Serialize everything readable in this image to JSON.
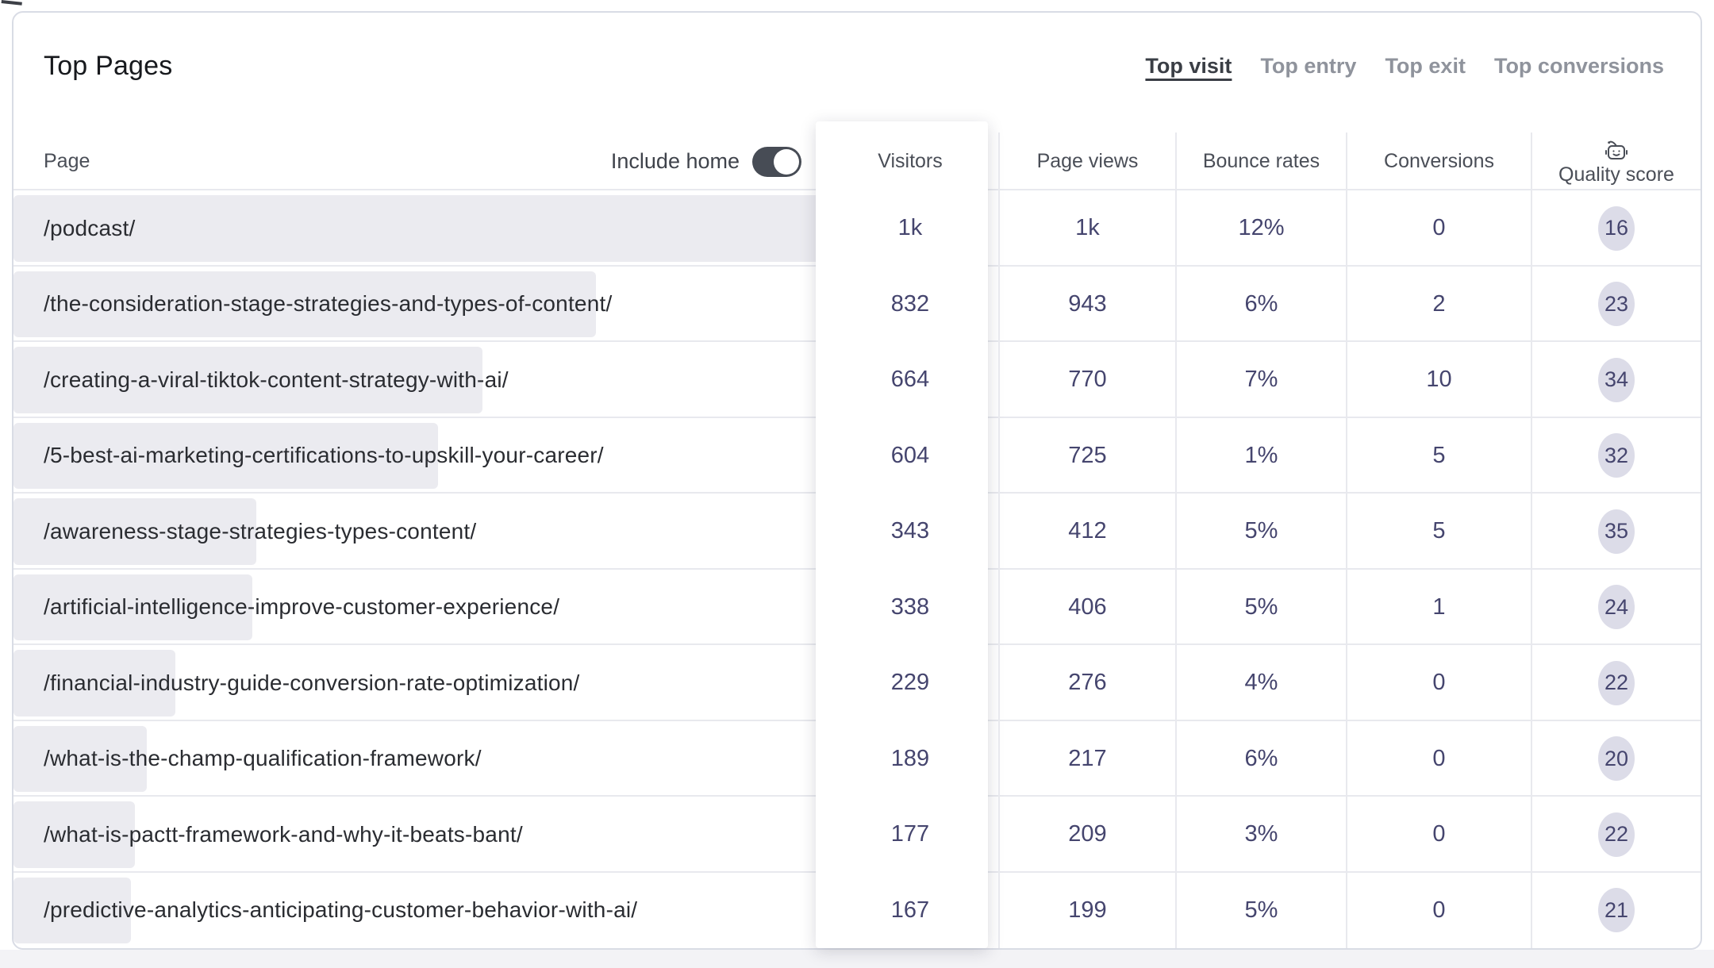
{
  "page": {
    "title": "Top Pages",
    "tabs": [
      {
        "label": "Top visit",
        "active": true
      },
      {
        "label": "Top entry",
        "active": false
      },
      {
        "label": "Top exit",
        "active": false
      },
      {
        "label": "Top conversions",
        "active": false
      }
    ],
    "include_home": {
      "label": "Include home",
      "state": "on"
    },
    "columns": {
      "page": "Page",
      "visitors": "Visitors",
      "page_views": "Page views",
      "bounce_rates": "Bounce rates",
      "conversions": "Conversions",
      "quality_score": "Quality score"
    },
    "quality_header_icon": "robot-icon"
  },
  "rows": [
    {
      "page": "/podcast/",
      "bar_pct": 100,
      "visitors": "1k",
      "page_views": "1k",
      "bounce_rate": "12%",
      "conversions": "0",
      "quality_score": "16"
    },
    {
      "page": "/the-consideration-stage-strategies-and-types-of-content/",
      "bar_pct": 72,
      "visitors": "832",
      "page_views": "943",
      "bounce_rate": "6%",
      "conversions": "2",
      "quality_score": "23"
    },
    {
      "page": "/creating-a-viral-tiktok-content-strategy-with-ai/",
      "bar_pct": 58,
      "visitors": "664",
      "page_views": "770",
      "bounce_rate": "7%",
      "conversions": "10",
      "quality_score": "34"
    },
    {
      "page": "/5-best-ai-marketing-certifications-to-upskill-your-career/",
      "bar_pct": 52.5,
      "visitors": "604",
      "page_views": "725",
      "bounce_rate": "1%",
      "conversions": "5",
      "quality_score": "32"
    },
    {
      "page": "/awareness-stage-strategies-types-content/",
      "bar_pct": 30,
      "visitors": "343",
      "page_views": "412",
      "bounce_rate": "5%",
      "conversions": "5",
      "quality_score": "35"
    },
    {
      "page": "/artificial-intelligence-improve-customer-experience/",
      "bar_pct": 29.5,
      "visitors": "338",
      "page_views": "406",
      "bounce_rate": "5%",
      "conversions": "1",
      "quality_score": "24"
    },
    {
      "page": "/financial-industry-guide-conversion-rate-optimization/",
      "bar_pct": 20,
      "visitors": "229",
      "page_views": "276",
      "bounce_rate": "4%",
      "conversions": "0",
      "quality_score": "22"
    },
    {
      "page": "/what-is-the-champ-qualification-framework/",
      "bar_pct": 16.5,
      "visitors": "189",
      "page_views": "217",
      "bounce_rate": "6%",
      "conversions": "0",
      "quality_score": "20"
    },
    {
      "page": "/what-is-pactt-framework-and-why-it-beats-bant/",
      "bar_pct": 15,
      "visitors": "177",
      "page_views": "209",
      "bounce_rate": "3%",
      "conversions": "0",
      "quality_score": "22"
    },
    {
      "page": "/predictive-analytics-anticipating-customer-behavior-with-ai/",
      "bar_pct": 14.5,
      "visitors": "167",
      "page_views": "199",
      "bounce_rate": "5%",
      "conversions": "0",
      "quality_score": "21"
    }
  ],
  "colors": {
    "accent_indigo": "#45456e",
    "badge_bg": "#dcdce8",
    "bar_bg": "#ebebf0",
    "toggle_bg": "#474c55",
    "card_border": "#d9dce5",
    "separator": "#e8e9ee",
    "tab_active": "#3a3e45",
    "tab_inactive": "#8f939c",
    "header_text": "#4a4e57",
    "url_text": "#2a2c31",
    "title_text": "#17191d",
    "page_strip_bg": "#f3f3f6"
  }
}
